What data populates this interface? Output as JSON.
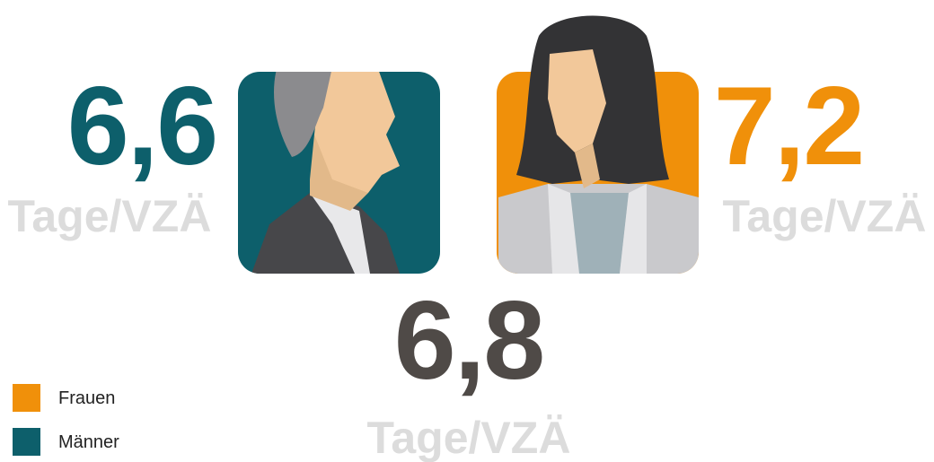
{
  "figures": {
    "men": {
      "value": "6,6",
      "unit": "Tage/VZÄ"
    },
    "women": {
      "value": "7,2",
      "unit": "Tage/VZÄ"
    },
    "total": {
      "value": "6,8",
      "unit": "Tage/VZÄ"
    }
  },
  "legend": [
    {
      "label": "Frauen"
    },
    {
      "label": "Männer"
    }
  ]
}
